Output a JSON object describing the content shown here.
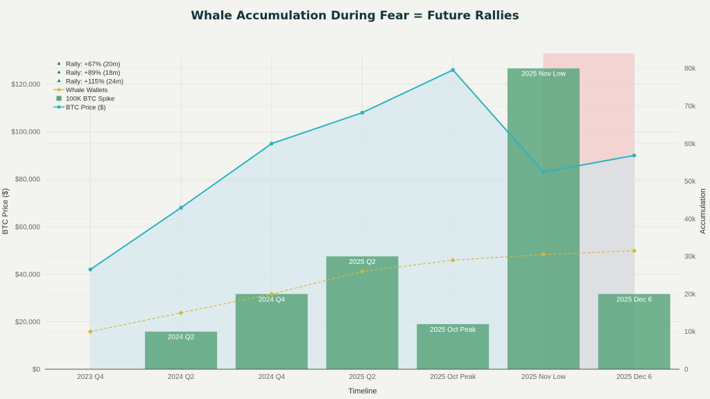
{
  "chart_data": {
    "type": "bar",
    "title": "Whale Accumulation During Fear = Future Rallies",
    "xlabel": "Timeline",
    "ylabel": "BTC Price ($)",
    "y2label": "Accumulation",
    "categories": [
      "2023 Q4",
      "2024 Q2",
      "2024 Q4",
      "2025 Q2",
      "2025 Oct Peak",
      "2025 Nov Low",
      "2025 Dec 6"
    ],
    "ylim": [
      0,
      133000
    ],
    "y2lim": [
      0,
      84000
    ],
    "yticks": [
      0,
      20000,
      40000,
      60000,
      80000,
      100000,
      120000
    ],
    "ytick_labels": [
      "$0",
      "$20,000",
      "$40,000",
      "$60,000",
      "$80,000",
      "$100,000",
      "$120,000"
    ],
    "y2ticks": [
      0,
      10000,
      20000,
      30000,
      40000,
      50000,
      60000,
      70000,
      80000
    ],
    "y2tick_labels": [
      "0",
      "10k",
      "20k",
      "30k",
      "40k",
      "50k",
      "60k",
      "70k",
      "80k"
    ],
    "grid": true,
    "legend_placement": "top-left",
    "series": [
      {
        "name": "BTC Price ($)",
        "type": "line-area",
        "axis": "left",
        "color": "#2bb3c0",
        "values": [
          42000,
          68000,
          95000,
          108000,
          126000,
          83000,
          90000
        ]
      },
      {
        "name": "100K BTC Spike",
        "type": "bar",
        "axis": "right",
        "color": "#5aa67c",
        "values": [
          0,
          10000,
          20000,
          30000,
          12000,
          80000,
          20000
        ],
        "labels": [
          "",
          "2024 Q2",
          "2024 Q4",
          "2025 Q2",
          "2025 Oct Peak",
          "2025 Nov Low",
          "2025 Dec 6"
        ]
      },
      {
        "name": "Whale Wallets",
        "type": "line",
        "axis": "right",
        "color": "#d4b83c",
        "values": [
          10000,
          15000,
          20000,
          26000,
          29000,
          30500,
          31500
        ]
      },
      {
        "name": "Rally: +115% (24m)",
        "type": "marker",
        "color": "#2e7d4f"
      },
      {
        "name": "Rally: +89% (18m)",
        "type": "marker",
        "color": "#2e7d4f"
      },
      {
        "name": "Rally: +67% (20m)",
        "type": "marker",
        "color": "#2e7d4f"
      }
    ],
    "legend": [
      "Rally: +67% (20m)",
      "Rally: +89% (18m)",
      "Rally: +115% (24m)",
      "Whale Wallets",
      "100K BTC Spike",
      "BTC Price ($)"
    ],
    "highlight_region": {
      "from": "2025 Nov Low",
      "to": "2025 Dec 6",
      "color": "#f2c9c9"
    }
  }
}
